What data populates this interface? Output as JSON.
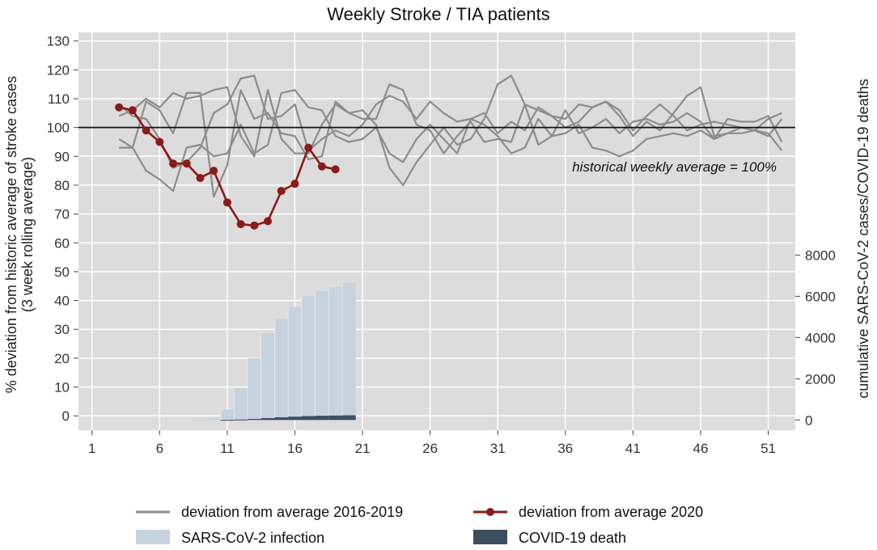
{
  "chart_data": {
    "type": "line",
    "title": "Weekly Stroke / TIA patients",
    "ylabel_line1": "% deviation from historic average of stroke cases",
    "ylabel_line2": "(3 week rolling average)",
    "y2label": "cumulative SARS-CoV-2 cases/COVID-19 deaths",
    "annotation": "historical weekly average = 100%",
    "reference_line": 100,
    "xlim": [
      0,
      53
    ],
    "ylim": [
      -5,
      133
    ],
    "y2lim": [
      -500,
      18800
    ],
    "x_ticks": [
      "1",
      "6",
      "11",
      "16",
      "21",
      "26",
      "31",
      "36",
      "41",
      "46",
      "51"
    ],
    "y_ticks": [
      "0",
      "10",
      "20",
      "30",
      "40",
      "50",
      "60",
      "70",
      "80",
      "90",
      "100",
      "110",
      "120",
      "130"
    ],
    "y2_ticks": [
      "0",
      "2000",
      "4000",
      "6000",
      "8000"
    ],
    "colors": {
      "plot_bg": "#dcdcdc",
      "grid": "#ffffff",
      "historic": "#8c8c8c",
      "y2020": "#8b1a1a",
      "infection": "#c6d2de",
      "death": "#3d4e5f",
      "reference": "#111111"
    },
    "legend": {
      "historic": "deviation from average 2016-2019",
      "y2020": "deviation from average 2020",
      "infection": "SARS-CoV-2 infection",
      "death": "COVID-19 death"
    },
    "series_historic": [
      {
        "name": "2016",
        "x_start": 3,
        "values": [
          93,
          93,
          109,
          106,
          98,
          112,
          112,
          76,
          87,
          113,
          103,
          105,
          98,
          97,
          89,
          90,
          109,
          105,
          103,
          103,
          115,
          113,
          101,
          99,
          91,
          97,
          102,
          95,
          96,
          95,
          108,
          106,
          104,
          103,
          108,
          107,
          109,
          104,
          97,
          102,
          99,
          105,
          111,
          114,
          97,
          98,
          100,
          99,
          103,
          105
        ]
      },
      {
        "name": "2017",
        "x_start": 3,
        "values": [
          104,
          106,
          110,
          107,
          112,
          110,
          111,
          113,
          114,
          97,
          90,
          113,
          96,
          91,
          91,
          101,
          108,
          105,
          106,
          101,
          86,
          80,
          88,
          94,
          100,
          94,
          96,
          103,
          115,
          118,
          108,
          94,
          97,
          106,
          98,
          100,
          103,
          98,
          102,
          103,
          101,
          102,
          105,
          102,
          96,
          103,
          102,
          102,
          104,
          95
        ]
      },
      {
        "name": "2018",
        "x_start": 3,
        "values": [
          96,
          93,
          85,
          82,
          78,
          93,
          94,
          90,
          91,
          101,
          91,
          94,
          112,
          113,
          107,
          106,
          97,
          95,
          96,
          100,
          91,
          88,
          96,
          101,
          96,
          91,
          103,
          101,
          97,
          91,
          93,
          103,
          97,
          98,
          101,
          93,
          92,
          90,
          92,
          96,
          97,
          98,
          97,
          99,
          96,
          98,
          98,
          99,
          97,
          103
        ]
      },
      {
        "name": "2019",
        "x_start": 3,
        "values": [
          108,
          104,
          103,
          96,
          86,
          88,
          93,
          105,
          108,
          117,
          118,
          103,
          104,
          108,
          92,
          96,
          99,
          97,
          101,
          108,
          111,
          109,
          103,
          109,
          105,
          102,
          103,
          105,
          98,
          102,
          99,
          107,
          104,
          100,
          102,
          107,
          109,
          106,
          99,
          104,
          108,
          104,
          99,
          101,
          102,
          101,
          100,
          99,
          98,
          92
        ]
      }
    ],
    "series_2020": {
      "name": "2020",
      "x_start": 3,
      "values": [
        107,
        106,
        99,
        95,
        87.5,
        87.5,
        82.5,
        85,
        74,
        66.5,
        66,
        67.5,
        78,
        80.5,
        93,
        86.5,
        85.5
      ]
    },
    "bars": {
      "weeks": [
        9,
        10,
        11,
        12,
        13,
        14,
        15,
        16,
        17,
        18,
        19,
        20
      ],
      "infections": [
        20,
        100,
        500,
        1550,
        3000,
        4200,
        4900,
        5500,
        6000,
        6250,
        6450,
        6650
      ],
      "deaths": [
        0,
        0,
        5,
        20,
        50,
        90,
        130,
        160,
        190,
        205,
        215,
        225
      ]
    }
  }
}
